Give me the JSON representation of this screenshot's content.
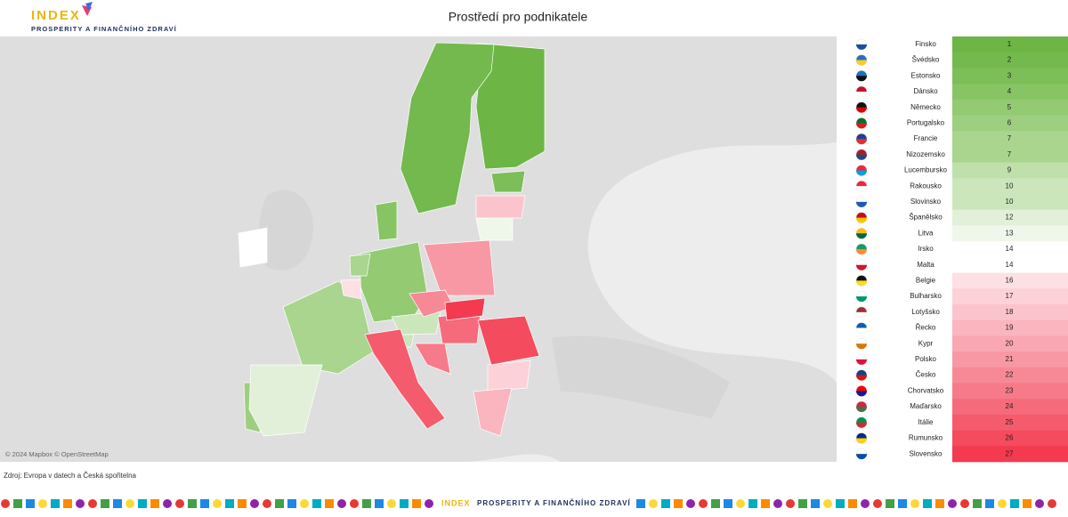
{
  "header": {
    "logo": "INDEX",
    "logo_sub": "PROSPERITY A FINANČNÍHO ZDRAVÍ",
    "title": "Prostředí pro podnikatele"
  },
  "map": {
    "attribution": "© 2024 Mapbox © OpenStreetMap"
  },
  "ranking": {
    "rows": [
      {
        "country": "Finsko",
        "rank": 1,
        "color": "#6db545"
      },
      {
        "country": "Švédsko",
        "rank": 2,
        "color": "#73b94d"
      },
      {
        "country": "Estonsko",
        "rank": 3,
        "color": "#7cbe57"
      },
      {
        "country": "Dánsko",
        "rank": 4,
        "color": "#87c464"
      },
      {
        "country": "Německo",
        "rank": 5,
        "color": "#93ca72"
      },
      {
        "country": "Portugalsko",
        "rank": 6,
        "color": "#9ecf80"
      },
      {
        "country": "Francie",
        "rank": 7,
        "color": "#a9d58e"
      },
      {
        "country": "Nizozemsko",
        "rank": 7,
        "color": "#a9d58e"
      },
      {
        "country": "Lucembursko",
        "rank": 9,
        "color": "#bfe0ab"
      },
      {
        "country": "Rakousko",
        "rank": 10,
        "color": "#cbe6bb"
      },
      {
        "country": "Slovinsko",
        "rank": 10,
        "color": "#cbe6bb"
      },
      {
        "country": "Španělsko",
        "rank": 12,
        "color": "#e2f0d9"
      },
      {
        "country": "Litva",
        "rank": 13,
        "color": "#eff7ea"
      },
      {
        "country": "Irsko",
        "rank": 14,
        "color": "#ffffff"
      },
      {
        "country": "Malta",
        "rank": 14,
        "color": "#ffffff"
      },
      {
        "country": "Belgie",
        "rank": 16,
        "color": "#fde0e4"
      },
      {
        "country": "Bulharsko",
        "rank": 17,
        "color": "#fcd2d8"
      },
      {
        "country": "Lotyšsko",
        "rank": 18,
        "color": "#fbc4cc"
      },
      {
        "country": "Řecko",
        "rank": 19,
        "color": "#fab5bf"
      },
      {
        "country": "Kypr",
        "rank": 20,
        "color": "#f9a7b2"
      },
      {
        "country": "Polsko",
        "rank": 21,
        "color": "#f898a5"
      },
      {
        "country": "Česko",
        "rank": 22,
        "color": "#f78997"
      },
      {
        "country": "Chorvatsko",
        "rank": 23,
        "color": "#f67a89"
      },
      {
        "country": "Maďarsko",
        "rank": 24,
        "color": "#f56b7b"
      },
      {
        "country": "Itálie",
        "rank": 25,
        "color": "#f45b6c"
      },
      {
        "country": "Rumunsko",
        "rank": 26,
        "color": "#f44b5e"
      },
      {
        "country": "Slovensko",
        "rank": 27,
        "color": "#f33a4f"
      }
    ]
  },
  "footer": {
    "source": "Zdroj: Evropa v datech a Česká spořitelna",
    "logo": "INDEX",
    "logo_sub": "PROSPERITY A FINANČNÍHO ZDRAVÍ"
  }
}
